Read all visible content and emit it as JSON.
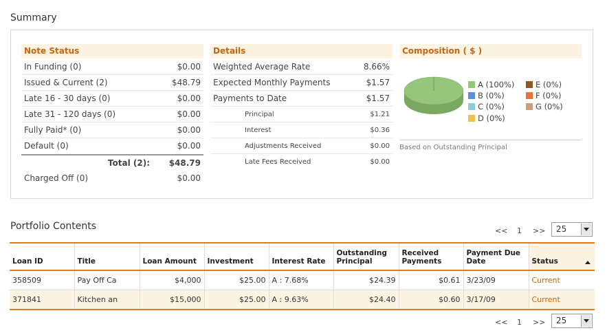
{
  "summary": {
    "title": "Summary"
  },
  "note_status": {
    "header": "Note Status",
    "rows": [
      {
        "label": "In Funding (0)",
        "value": "$0.00"
      },
      {
        "label": "Issued & Current (2)",
        "value": "$48.79"
      },
      {
        "label": "Late 16 - 30 days (0)",
        "value": "$0.00"
      },
      {
        "label": "Late 31 - 120 days (0)",
        "value": "$0.00"
      },
      {
        "label": "Fully Paid* (0)",
        "value": "$0.00"
      },
      {
        "label": "Default (0)",
        "value": "$0.00"
      }
    ],
    "total": {
      "label": "Total (2):",
      "value": "$48.79"
    },
    "charged_off": {
      "label": "Charged Off (0)",
      "value": "$0.00"
    }
  },
  "details": {
    "header": "Details",
    "rows": [
      {
        "label": "Weighted Average Rate",
        "value": "8.66%"
      },
      {
        "label": "Expected Monthly Payments",
        "value": "$1.57"
      },
      {
        "label": "Payments to Date",
        "value": "$1.57"
      }
    ],
    "sub_rows": [
      {
        "label": "Principal",
        "value": "$1.21"
      },
      {
        "label": "Interest",
        "value": "$0.36"
      },
      {
        "label": "Adjustments Received",
        "value": "$0.00"
      },
      {
        "label": "Late Fees Received",
        "value": "$0.00"
      }
    ]
  },
  "composition": {
    "header": "Composition ( $ )",
    "legend": [
      {
        "label": "A (100%)",
        "color": "#96c67c"
      },
      {
        "label": "B (0%)",
        "color": "#5b8fd8"
      },
      {
        "label": "C (0%)",
        "color": "#8ccbd8"
      },
      {
        "label": "D (0%)",
        "color": "#f2c04a"
      },
      {
        "label": "E (0%)",
        "color": "#8c5a1e"
      },
      {
        "label": "F (0%)",
        "color": "#e8733a"
      },
      {
        "label": "G (0%)",
        "color": "#c9a07e"
      }
    ],
    "note": "Based on Outstanding Principal"
  },
  "portfolio": {
    "title": "Portfolio Contents",
    "pager": {
      "prev": "<<",
      "page": "1",
      "next": ">>",
      "per_page": "25"
    },
    "columns": [
      "Loan ID",
      "Title",
      "Loan Amount",
      "Investment",
      "Interest Rate",
      "Outstanding Principal",
      "Received Payments",
      "Payment Due Date",
      "Status"
    ],
    "rows": [
      [
        "358509",
        "Pay Off Ca",
        "$4,000",
        "$25.00",
        "A : 7.68%",
        "$24.39",
        "$0.61",
        "3/23/09",
        "Current"
      ],
      [
        "371841",
        "Kitchen an",
        "$15,000",
        "$25.00",
        "A : 9.63%",
        "$24.40",
        "$0.60",
        "3/17/09",
        "Current"
      ]
    ]
  },
  "colors": {
    "accent": "#e07b22",
    "header_text": "#c8650f",
    "header_bg": "#fdf3e2"
  }
}
